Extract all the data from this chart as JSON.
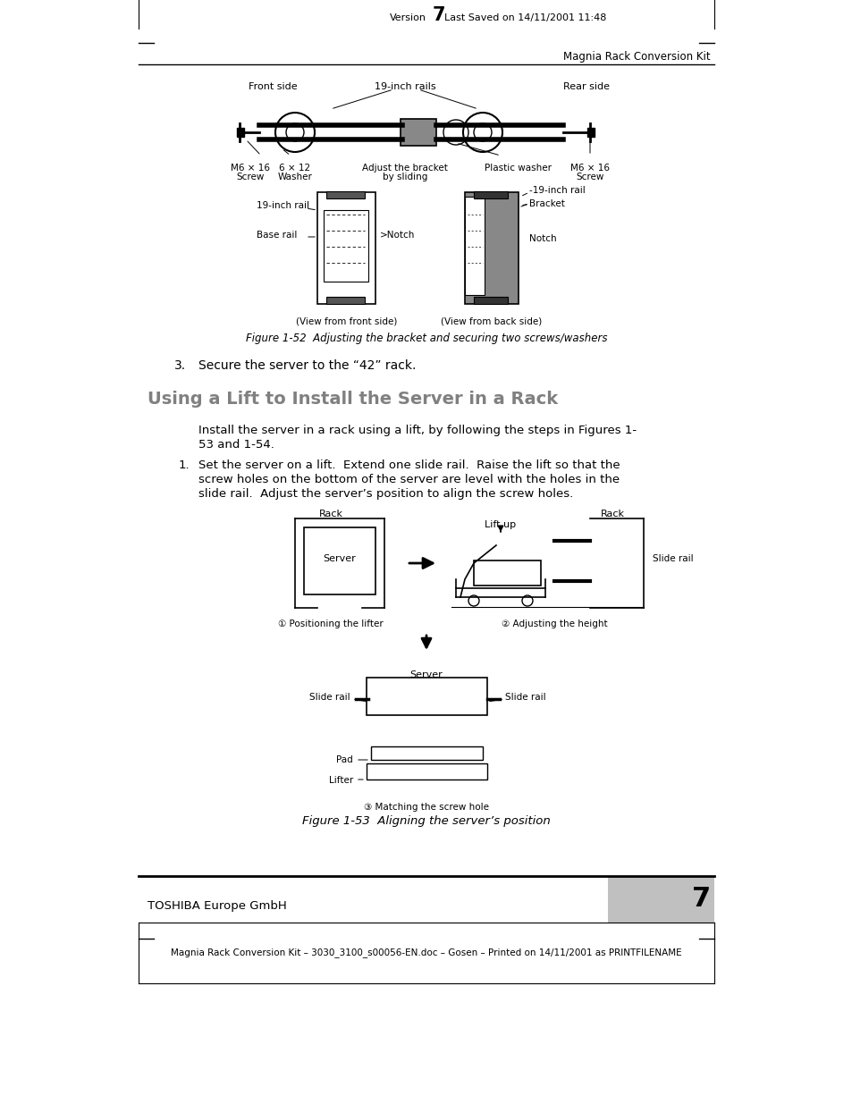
{
  "page_bg": "#ffffff",
  "header_version": "Version",
  "header_num": "7",
  "header_date": "Last Saved on 14/11/2001 11:48",
  "header_right": "Magnia Rack Conversion Kit",
  "fig1_caption": "Figure 1-52  Adjusting the bracket and securing two screws/washers",
  "sec3_label": "3.",
  "sec3_text": "Secure the server to the “42” rack.",
  "heading": "Using a Lift to Install the Server in a Rack",
  "intro_line1": "Install the server in a rack using a lift, by following the steps in Figures 1-",
  "intro_line2": "53 and 1-54.",
  "step1_label": "1.",
  "step1_line1": "Set the server on a lift.  Extend one slide rail.  Raise the lift so that the",
  "step1_line2": "screw holes on the bottom of the server are level with the holes in the",
  "step1_line3": "slide rail.  Adjust the server’s position to align the screw holes.",
  "fig2_caption": "Figure 1-53  Aligning the server’s position",
  "footer_left": "TOSHIBA Europe GmbH",
  "footer_num": "7",
  "footer_bottom": "Magnia Rack Conversion Kit – 3030_3100_s00056-EN.doc – Gosen – Printed on 14/11/2001 as PRINTFILENAME",
  "heading_color": "#808080",
  "black": "#000000",
  "gray_fill": "#aaaaaa",
  "light_gray": "#cccccc"
}
